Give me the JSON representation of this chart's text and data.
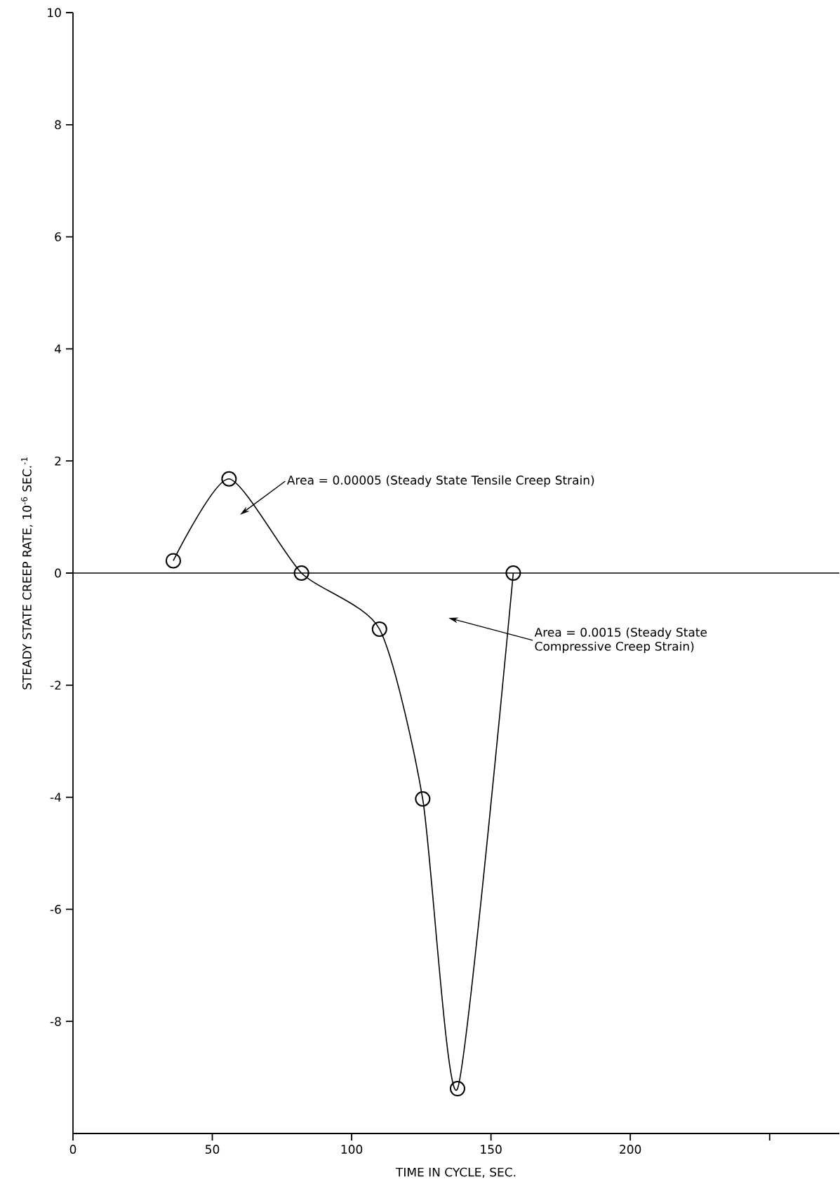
{
  "chart_data": {
    "type": "line",
    "xlabel": "TIME IN CYCLE, SEC.",
    "ylabel": "STEADY STATE CREEP RATE, 10$^{-6}$ SEC.$^{-1}$",
    "x": [
      36,
      56,
      82,
      110,
      125.5,
      138,
      158
    ],
    "values": [
      0.22,
      1.68,
      0,
      -1.0,
      -4.03,
      -9.2,
      0
    ],
    "color": "#000000",
    "marker": "circle",
    "xlim": [
      0,
      275
    ],
    "ylim": [
      -10,
      10
    ],
    "xticks": [
      0,
      50,
      100,
      150,
      200,
      {
        "value": 250,
        "label": null
      }
    ],
    "yticks": [
      -8,
      -6,
      -4,
      -2,
      0,
      2,
      4,
      6,
      8,
      10
    ],
    "ref_lines": [
      {
        "axis": "y",
        "value": 0
      }
    ],
    "annotations": [
      "Area = 0.00005 (Steady State Tensile Creep Strain)",
      "Area = 0.0015 (Steady State Compressive Creep Strain)"
    ]
  }
}
